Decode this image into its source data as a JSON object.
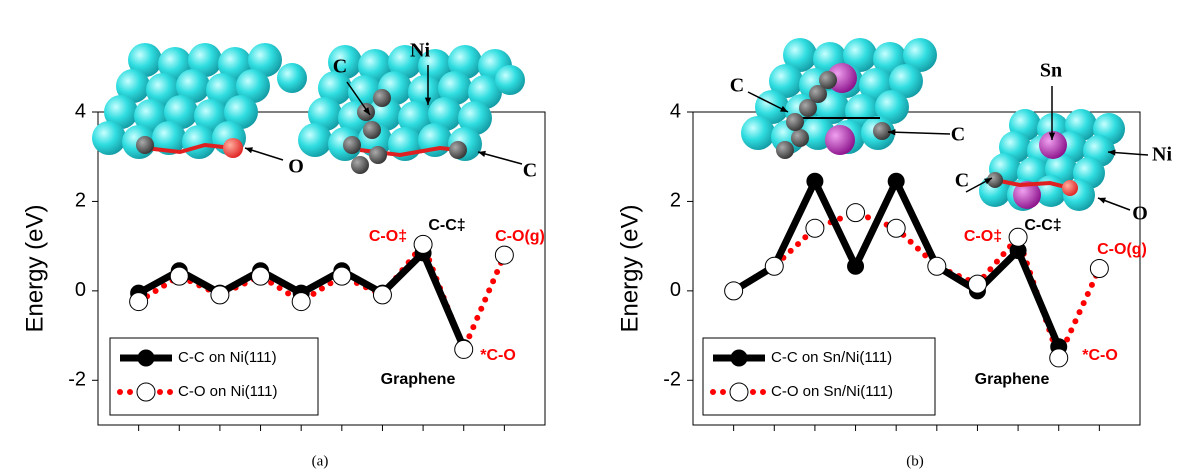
{
  "chart_data": [
    {
      "type": "line",
      "caption": "(a)",
      "y_label": "Energy (eV)",
      "categories": [
        null,
        null,
        null,
        null,
        null,
        null,
        null,
        null,
        null,
        null
      ],
      "series": [
        {
          "name": "C-C on Ni(111)",
          "color": "#000000",
          "values": [
            -0.05,
            0.45,
            -0.05,
            0.45,
            -0.05,
            0.45,
            -0.05,
            0.85,
            -1.27,
            null
          ]
        },
        {
          "name": "C-O on Ni(111)",
          "color": "#ff0000",
          "values": [
            -0.24,
            0.33,
            -0.09,
            0.33,
            -0.24,
            0.33,
            -0.09,
            1.04,
            -1.31,
            0.8
          ]
        }
      ],
      "ylim": [
        -3,
        4
      ],
      "yticks": [
        -2,
        0,
        2,
        4
      ],
      "legend": "lower left",
      "annotations": [
        {
          "text": "C-O‡",
          "color": "#ff0000"
        },
        {
          "text": "C-C‡",
          "color": "#000000"
        },
        {
          "text": "C-O(g)",
          "color": "#ff0000"
        },
        {
          "text": "*C-O",
          "color": "#ff0000"
        },
        {
          "text": "Graphene",
          "color": "#000000"
        }
      ],
      "structure_labels": [
        "O",
        "Ni",
        "C",
        "C"
      ]
    },
    {
      "type": "line",
      "caption": "(b)",
      "y_label": "Energy (eV)",
      "categories": [
        null,
        null,
        null,
        null,
        null,
        null,
        null,
        null,
        null,
        null
      ],
      "series": [
        {
          "name": "C-C on Sn/Ni(111)",
          "color": "#000000",
          "values": [
            0,
            0.55,
            2.45,
            0.55,
            2.45,
            0.55,
            0,
            0.9,
            -1.25,
            null
          ]
        },
        {
          "name": "C-O on Sn/Ni(111)",
          "color": "#ff0000",
          "values": [
            0,
            0.55,
            1.4,
            1.75,
            1.4,
            0.55,
            0.15,
            1.2,
            -1.5,
            0.5
          ]
        }
      ],
      "ylim": [
        -3,
        4
      ],
      "yticks": [
        -2,
        0,
        2,
        4
      ],
      "legend": "lower left",
      "annotations": [
        {
          "text": "C-O‡",
          "color": "#ff0000"
        },
        {
          "text": "C-C‡",
          "color": "#000000"
        },
        {
          "text": "C-O(g)",
          "color": "#ff0000"
        },
        {
          "text": "*C-O",
          "color": "#ff0000"
        },
        {
          "text": "Graphene",
          "color": "#000000"
        }
      ],
      "structure_labels": [
        "C",
        "C",
        "C",
        "Sn",
        "Ni",
        "O"
      ]
    }
  ]
}
